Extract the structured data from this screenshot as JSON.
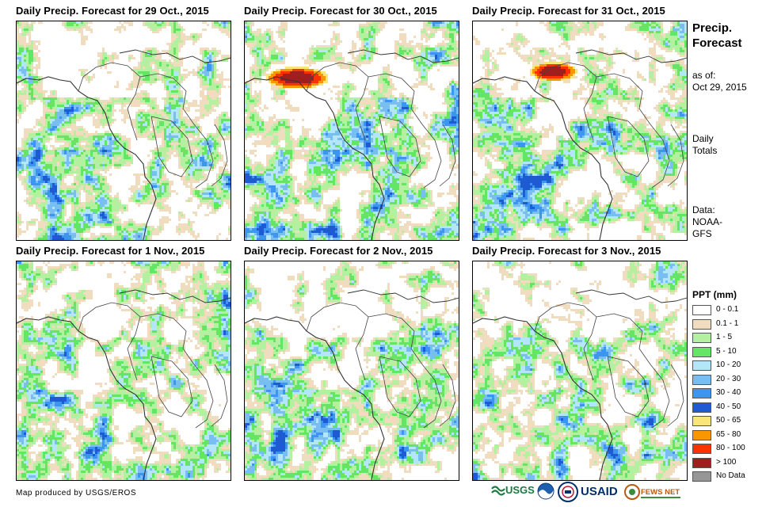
{
  "panels": [
    {
      "title": "Daily Precip. Forecast for 29 Oct., 2015"
    },
    {
      "title": "Daily Precip. Forecast for 30 Oct., 2015"
    },
    {
      "title": "Daily Precip. Forecast for 31 Oct., 2015"
    },
    {
      "title": "Daily Precip. Forecast for 1 Nov., 2015"
    },
    {
      "title": "Daily Precip. Forecast for 2 Nov., 2015"
    },
    {
      "title": "Daily Precip. Forecast for 3 Nov., 2015"
    }
  ],
  "side": {
    "title_line1": "Precip.",
    "title_line2": "Forecast",
    "asof_line1": "as of:",
    "asof_line2": "Oct 29, 2015",
    "daily_line1": "Daily",
    "daily_line2": "Totals",
    "data_line1": "Data:",
    "data_line2": "NOAA-",
    "data_line3": "GFS"
  },
  "legend": {
    "title": "PPT (mm)",
    "items": [
      {
        "label": "0 - 0.1",
        "color": "#ffffff"
      },
      {
        "label": "0.1 - 1",
        "color": "#f0dcbe"
      },
      {
        "label": "1 - 5",
        "color": "#b4f0a0"
      },
      {
        "label": "5 - 10",
        "color": "#64e664"
      },
      {
        "label": "10 - 20",
        "color": "#b4e6fa"
      },
      {
        "label": "20 - 30",
        "color": "#78bef0"
      },
      {
        "label": "30 - 40",
        "color": "#3c96f0"
      },
      {
        "label": "40 - 50",
        "color": "#1e5ad2"
      },
      {
        "label": "50 - 65",
        "color": "#fae678"
      },
      {
        "label": "65 - 80",
        "color": "#fa9600"
      },
      {
        "label": "80 - 100",
        "color": "#fa3200"
      },
      {
        "label": "> 100",
        "color": "#a01e1e"
      },
      {
        "label": "No Data",
        "color": "#969696"
      }
    ]
  },
  "credit": "Map produced by USGS/EROS",
  "logos": {
    "usgs": "USGS",
    "usaid": "USAID",
    "fewsnet": "FEWS NET"
  }
}
